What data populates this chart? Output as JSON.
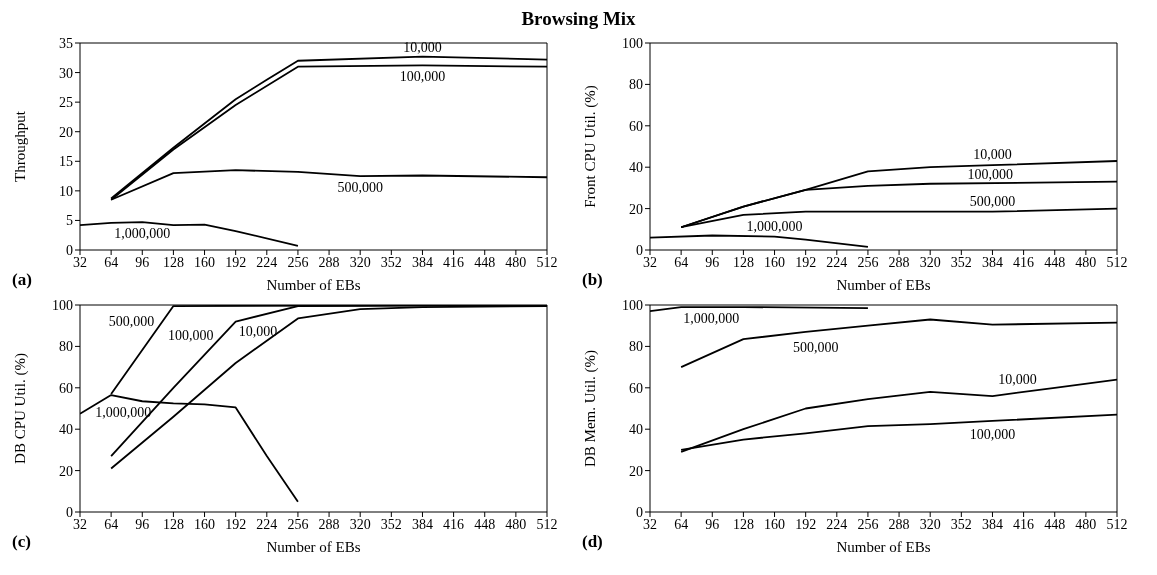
{
  "chart_data": [
    {
      "type": "line",
      "title": "Browsing Mix",
      "xlabel": "Number of EBs",
      "ylabel": "Throughput",
      "annotations": [
        "(a)"
      ],
      "xlim": [
        32,
        512
      ],
      "xticks": [
        32,
        64,
        96,
        128,
        160,
        192,
        224,
        256,
        288,
        320,
        352,
        384,
        416,
        448,
        480,
        512
      ],
      "ylim": [
        0,
        35
      ],
      "yticks": [
        0,
        5,
        10,
        15,
        20,
        25,
        30,
        35
      ],
      "marker": "none",
      "line_style": "solid",
      "series": [
        {
          "name": "10,000",
          "color": "#000000",
          "x": [
            64,
            128,
            192,
            224,
            256,
            384,
            512
          ],
          "values": [
            8.7,
            17.3,
            25.5,
            28.8,
            32,
            32.7,
            32.2
          ]
        },
        {
          "name": "100,000",
          "color": "#000000",
          "x": [
            64,
            128,
            192,
            256,
            384,
            512
          ],
          "values": [
            8.5,
            17,
            24.5,
            31,
            31.2,
            31
          ]
        },
        {
          "name": "500,000",
          "color": "#000000",
          "x": [
            64,
            128,
            192,
            256,
            320,
            384,
            512
          ],
          "values": [
            8.5,
            13,
            13.5,
            13.2,
            12.5,
            12.6,
            12.3
          ]
        },
        {
          "name": "1,000,000",
          "color": "#000000",
          "x": [
            32,
            64,
            96,
            128,
            160,
            192,
            256
          ],
          "values": [
            4.2,
            4.6,
            4.7,
            4.2,
            4.3,
            3.2,
            0.7
          ]
        }
      ]
    },
    {
      "type": "line",
      "xlabel": "Number of EBs",
      "ylabel": "Front CPU Util. (%)",
      "annotations": [
        "(b)"
      ],
      "xlim": [
        32,
        512
      ],
      "xticks": [
        32,
        64,
        96,
        128,
        160,
        192,
        224,
        256,
        288,
        320,
        352,
        384,
        416,
        448,
        480,
        512
      ],
      "ylim": [
        0,
        100
      ],
      "yticks": [
        0,
        20,
        40,
        60,
        80,
        100
      ],
      "marker": "none",
      "line_style": "solid",
      "series": [
        {
          "name": "10,000",
          "color": "#000000",
          "x": [
            64,
            128,
            192,
            256,
            320,
            384,
            512
          ],
          "values": [
            11,
            21,
            29,
            38,
            40,
            41,
            43
          ]
        },
        {
          "name": "100,000",
          "color": "#000000",
          "x": [
            64,
            128,
            192,
            256,
            320,
            512
          ],
          "values": [
            11,
            21,
            29,
            31,
            32,
            33
          ]
        },
        {
          "name": "500,000",
          "color": "#000000",
          "x": [
            64,
            128,
            192,
            256,
            384,
            512
          ],
          "values": [
            11,
            17,
            18.5,
            18.5,
            18.5,
            20
          ]
        },
        {
          "name": "1,000,000",
          "color": "#000000",
          "x": [
            32,
            96,
            160,
            192,
            256
          ],
          "values": [
            6,
            7,
            6.5,
            5,
            1.5
          ]
        }
      ]
    },
    {
      "type": "line",
      "xlabel": "Number of EBs",
      "ylabel": "DB CPU Util. (%)",
      "annotations": [
        "(c)"
      ],
      "xlim": [
        32,
        512
      ],
      "xticks": [
        32,
        64,
        96,
        128,
        160,
        192,
        224,
        256,
        288,
        320,
        352,
        384,
        416,
        448,
        480,
        512
      ],
      "ylim": [
        0,
        100
      ],
      "yticks": [
        0,
        20,
        40,
        60,
        80,
        100
      ],
      "marker": "none",
      "line_style": "solid",
      "series": [
        {
          "name": "500,000",
          "color": "#000000",
          "x": [
            64,
            128,
            512
          ],
          "values": [
            57,
            99.5,
            100
          ]
        },
        {
          "name": "100,000",
          "color": "#000000",
          "x": [
            64,
            128,
            192,
            256,
            512
          ],
          "values": [
            27,
            60,
            92,
            99.5,
            100
          ]
        },
        {
          "name": "10,000",
          "color": "#000000",
          "x": [
            64,
            128,
            192,
            256,
            320,
            384,
            512
          ],
          "values": [
            21,
            46,
            72,
            93.5,
            98,
            99,
            99.5
          ]
        },
        {
          "name": "1,000,000",
          "color": "#000000",
          "x": [
            32,
            64,
            96,
            128,
            160,
            192,
            224,
            256
          ],
          "values": [
            47.5,
            56.5,
            53.5,
            52.5,
            52,
            50.5,
            27,
            5
          ]
        }
      ]
    },
    {
      "type": "line",
      "xlabel": "Number of EBs",
      "ylabel": "DB Mem. Util. (%)",
      "annotations": [
        "(d)"
      ],
      "xlim": [
        32,
        512
      ],
      "xticks": [
        32,
        64,
        96,
        128,
        160,
        192,
        224,
        256,
        288,
        320,
        352,
        384,
        416,
        448,
        480,
        512
      ],
      "ylim": [
        0,
        100
      ],
      "yticks": [
        0,
        20,
        40,
        60,
        80,
        100
      ],
      "marker": "none",
      "line_style": "solid",
      "series": [
        {
          "name": "1,000,000",
          "color": "#000000",
          "x": [
            32,
            64,
            128,
            256
          ],
          "values": [
            97,
            99,
            99,
            98.5
          ]
        },
        {
          "name": "500,000",
          "color": "#000000",
          "x": [
            64,
            128,
            192,
            256,
            320,
            384,
            512
          ],
          "values": [
            70,
            83.5,
            87,
            90,
            93,
            90.5,
            91.5
          ]
        },
        {
          "name": "10,000",
          "color": "#000000",
          "x": [
            64,
            128,
            192,
            256,
            320,
            384,
            448,
            512
          ],
          "values": [
            29,
            40,
            50,
            54.5,
            58,
            56,
            60,
            64
          ]
        },
        {
          "name": "100,000",
          "color": "#000000",
          "x": [
            64,
            128,
            192,
            256,
            320,
            384,
            512
          ],
          "values": [
            30,
            35,
            38,
            41.5,
            42.5,
            44,
            47
          ]
        }
      ]
    }
  ]
}
